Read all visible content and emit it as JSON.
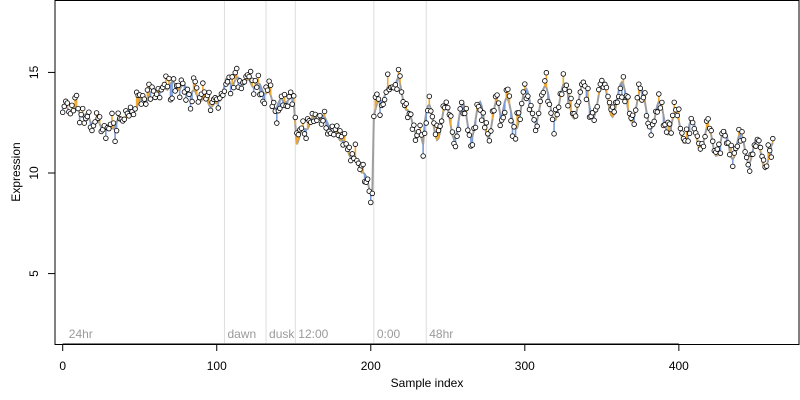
{
  "chart_data": {
    "type": "line",
    "title": "",
    "xlabel": "Sample index",
    "ylabel": "Expression",
    "xlim": [
      -5,
      478
    ],
    "ylim": [
      1.5,
      18.6
    ],
    "x_ticks": [
      0,
      100,
      200,
      300,
      400
    ],
    "y_ticks": [
      5,
      10,
      15
    ],
    "grid": false,
    "colors": {
      "trend": "#9e9e9e",
      "dev_up": "#f0a830",
      "dev_down": "#7b9bd8",
      "marker_line": "#dddddd",
      "point_fill": "#ffffff",
      "point_stroke": "#000000"
    },
    "markers": [
      {
        "x": 2,
        "label": "24hr"
      },
      {
        "x": 105,
        "label": "dawn"
      },
      {
        "x": 132,
        "label": "dusk"
      },
      {
        "x": 151,
        "label": "12:00"
      },
      {
        "x": 202,
        "label": "0:00"
      },
      {
        "x": 236,
        "label": "48hr"
      }
    ],
    "trend_knots": [
      [
        0,
        13.2
      ],
      [
        10,
        13.1
      ],
      [
        20,
        12.5
      ],
      [
        30,
        12.2
      ],
      [
        40,
        12.8
      ],
      [
        50,
        13.5
      ],
      [
        60,
        14.0
      ],
      [
        70,
        14.4
      ],
      [
        80,
        14.2
      ],
      [
        90,
        13.7
      ],
      [
        100,
        13.3
      ],
      [
        106,
        14.5
      ],
      [
        115,
        14.6
      ],
      [
        125,
        14.4
      ],
      [
        133,
        14.0
      ],
      [
        138,
        13.3
      ],
      [
        145,
        13.7
      ],
      [
        150,
        13.5
      ],
      [
        152,
        11.6
      ],
      [
        158,
        12.3
      ],
      [
        165,
        12.8
      ],
      [
        172,
        12.6
      ],
      [
        180,
        11.8
      ],
      [
        188,
        10.8
      ],
      [
        195,
        10.1
      ],
      [
        199,
        9.2
      ],
      [
        201,
        9.2
      ],
      [
        202,
        12.9
      ],
      [
        206,
        13.6
      ],
      [
        212,
        14.2
      ],
      [
        218,
        14.6
      ],
      [
        223,
        13.2
      ],
      [
        230,
        12.0
      ],
      [
        235,
        11.3
      ]
    ],
    "osc_segments": [
      {
        "from": 235,
        "to": 285,
        "mean": 12.5,
        "amp": 0.9,
        "period": 11
      },
      {
        "from": 285,
        "to": 385,
        "mean": 13.5,
        "amp": 0.9,
        "period": 12.5
      },
      {
        "from": 385,
        "to": 460,
        "mean": 11.5,
        "amp": 0.7,
        "period": 10.5
      }
    ],
    "osc_mean_trend": [
      [
        235,
        12.5
      ],
      [
        260,
        12.6
      ],
      [
        285,
        12.7
      ],
      [
        300,
        13.3
      ],
      [
        330,
        13.6
      ],
      [
        360,
        13.7
      ],
      [
        385,
        13.0
      ],
      [
        400,
        12.3
      ],
      [
        420,
        11.6
      ],
      [
        440,
        11.3
      ],
      [
        460,
        10.8
      ]
    ],
    "n_samples": 462,
    "noise_seed": 7,
    "point_noise": 0.55
  }
}
